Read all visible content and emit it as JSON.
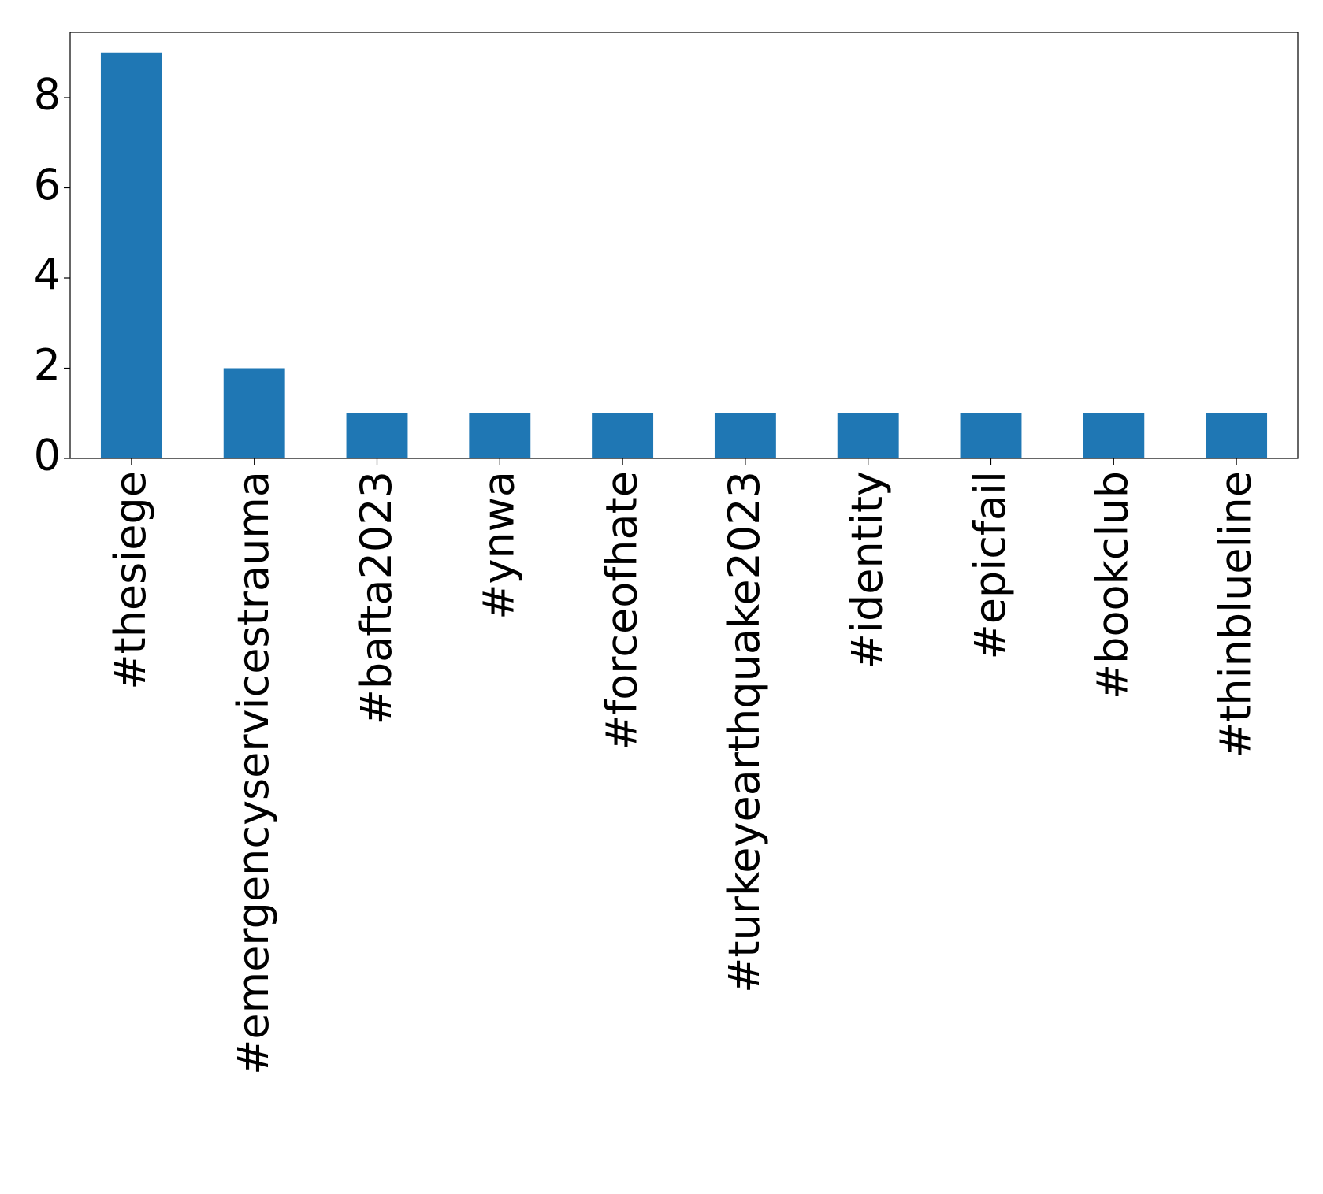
{
  "chart_data": {
    "type": "bar",
    "categories": [
      "#thesiege",
      "#emergencyservicestrauma",
      "#bafta2023",
      "#ynwa",
      "#forceofhate",
      "#turkeyearthquake2023",
      "#identity",
      "#epicfail",
      "#bookclub",
      "#thinblueline"
    ],
    "values": [
      9,
      2,
      1,
      1,
      1,
      1,
      1,
      1,
      1,
      1
    ],
    "color": "#1f77b4",
    "ylim": [
      0,
      9.45
    ],
    "yticks": [
      0,
      2,
      4,
      6,
      8
    ],
    "grid": false
  }
}
